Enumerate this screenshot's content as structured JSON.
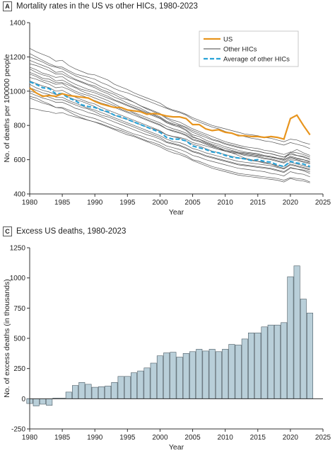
{
  "panel_a": {
    "letter": "A",
    "title": "Mortality rates in the US vs other HICs, 1980-2023"
  },
  "panel_c": {
    "letter": "C",
    "title": "Excess US deaths, 1980-2023"
  },
  "colors": {
    "us": "#E8951E",
    "other": "#444444",
    "average": "#2AA3D8",
    "bar_fill": "#B9CFD9",
    "bar_stroke": "#4A5A63"
  },
  "chart_data": [
    {
      "type": "line",
      "title": "Mortality rates in the US vs other HICs, 1980-2023",
      "xlabel": "Year",
      "ylabel": "No. of deaths per 100000 people",
      "xlim": [
        1980,
        2025
      ],
      "ylim": [
        400,
        1400
      ],
      "xticks": [
        1980,
        1985,
        1990,
        1995,
        2000,
        2005,
        2010,
        2015,
        2020,
        2025
      ],
      "yticks": [
        400,
        600,
        800,
        1000,
        1200,
        1400
      ],
      "legend": {
        "position": "top-right",
        "entries": [
          "US",
          "Other HICs",
          "Average of other HICs"
        ]
      },
      "x": [
        1980,
        1981,
        1982,
        1983,
        1984,
        1985,
        1986,
        1987,
        1988,
        1989,
        1990,
        1991,
        1992,
        1993,
        1994,
        1995,
        1996,
        1997,
        1998,
        1999,
        2000,
        2001,
        2002,
        2003,
        2004,
        2005,
        2006,
        2007,
        2008,
        2009,
        2010,
        2011,
        2012,
        2013,
        2014,
        2015,
        2016,
        2017,
        2018,
        2019,
        2020,
        2021,
        2022,
        2023
      ],
      "series": [
        {
          "name": "US",
          "values": [
            1020,
            990,
            970,
            975,
            970,
            985,
            975,
            970,
            965,
            960,
            940,
            925,
            915,
            905,
            905,
            890,
            885,
            880,
            865,
            870,
            865,
            855,
            850,
            850,
            840,
            805,
            805,
            780,
            770,
            775,
            760,
            755,
            740,
            740,
            735,
            735,
            730,
            735,
            730,
            720,
            840,
            860,
            800,
            745
          ]
        },
        {
          "name": "Average of other HICs",
          "values": [
            1055,
            1040,
            1020,
            1015,
            985,
            985,
            960,
            945,
            920,
            910,
            905,
            890,
            880,
            860,
            850,
            835,
            820,
            805,
            790,
            775,
            760,
            730,
            720,
            720,
            710,
            680,
            670,
            660,
            645,
            640,
            625,
            615,
            610,
            605,
            595,
            600,
            590,
            585,
            570,
            560,
            590,
            580,
            575,
            560
          ]
        }
      ],
      "other_hics": [
        [
          1220,
          1200,
          1180,
          1160,
          1145,
          1140,
          1120,
          1100,
          1090,
          1080,
          1070,
          1050,
          1035,
          1015,
          1000,
          990,
          975,
          960,
          945,
          930,
          915,
          900,
          885,
          875,
          860,
          835,
          820,
          805,
          790,
          780,
          765,
          755,
          745,
          735,
          725,
          720,
          710,
          705,
          695,
          685,
          700,
          690,
          680,
          665
        ],
        [
          1180,
          1165,
          1150,
          1135,
          1110,
          1115,
          1090,
          1070,
          1055,
          1040,
          1030,
          1010,
          995,
          980,
          960,
          950,
          935,
          915,
          900,
          885,
          870,
          845,
          830,
          820,
          800,
          780,
          765,
          750,
          735,
          720,
          705,
          695,
          685,
          675,
          670,
          665,
          655,
          650,
          640,
          630,
          645,
          640,
          630,
          615
        ],
        [
          1140,
          1125,
          1105,
          1095,
          1080,
          1085,
          1060,
          1040,
          1025,
          1010,
          1000,
          985,
          970,
          950,
          935,
          920,
          905,
          890,
          875,
          860,
          845,
          820,
          805,
          800,
          785,
          760,
          745,
          730,
          715,
          705,
          690,
          680,
          670,
          665,
          655,
          650,
          640,
          635,
          625,
          615,
          640,
          625,
          620,
          605
        ],
        [
          1100,
          1085,
          1065,
          1055,
          1040,
          1045,
          1020,
          1000,
          985,
          975,
          960,
          945,
          930,
          915,
          895,
          880,
          870,
          850,
          835,
          820,
          805,
          780,
          770,
          760,
          745,
          720,
          710,
          695,
          680,
          670,
          655,
          650,
          640,
          630,
          625,
          620,
          610,
          605,
          595,
          585,
          610,
          600,
          590,
          580
        ],
        [
          1060,
          1045,
          1030,
          1020,
          1000,
          1005,
          985,
          965,
          950,
          935,
          925,
          905,
          890,
          875,
          860,
          845,
          830,
          815,
          800,
          785,
          770,
          745,
          735,
          725,
          710,
          690,
          680,
          665,
          650,
          640,
          630,
          620,
          610,
          605,
          595,
          590,
          585,
          575,
          565,
          560,
          585,
          575,
          565,
          555
        ],
        [
          1020,
          1005,
          990,
          980,
          965,
          965,
          945,
          930,
          915,
          900,
          890,
          875,
          860,
          845,
          830,
          815,
          800,
          785,
          770,
          755,
          740,
          720,
          705,
          700,
          685,
          665,
          655,
          640,
          630,
          620,
          610,
          600,
          590,
          585,
          580,
          575,
          570,
          565,
          555,
          545,
          570,
          560,
          550,
          540
        ],
        [
          990,
          975,
          960,
          950,
          935,
          935,
          920,
          900,
          890,
          875,
          865,
          850,
          835,
          820,
          805,
          790,
          775,
          760,
          745,
          735,
          720,
          700,
          690,
          680,
          665,
          645,
          635,
          620,
          610,
          600,
          590,
          580,
          570,
          565,
          560,
          555,
          550,
          545,
          535,
          525,
          550,
          545,
          535,
          520
        ],
        [
          960,
          945,
          930,
          920,
          905,
          905,
          890,
          875,
          860,
          850,
          840,
          825,
          810,
          795,
          780,
          765,
          750,
          740,
          725,
          715,
          700,
          680,
          670,
          660,
          645,
          625,
          615,
          600,
          590,
          580,
          570,
          560,
          550,
          545,
          540,
          535,
          530,
          520,
          515,
          505,
          530,
          520,
          515,
          500
        ],
        [
          1250,
          1230,
          1215,
          1200,
          1175,
          1180,
          1150,
          1130,
          1115,
          1100,
          1095,
          1080,
          1065,
          1040,
          1025,
          1010,
          990,
          975,
          960,
          945,
          930,
          905,
          890,
          880,
          865,
          845,
          830,
          815,
          800,
          790,
          780,
          770,
          760,
          750,
          745,
          740,
          730,
          725,
          715,
          705,
          720,
          715,
          700,
          690
        ],
        [
          1130,
          1110,
          1095,
          1085,
          1060,
          1065,
          1045,
          1025,
          1010,
          1000,
          990,
          975,
          960,
          945,
          930,
          915,
          900,
          885,
          870,
          855,
          840,
          815,
          800,
          790,
          770,
          735,
          720,
          700,
          685,
          670,
          650,
          640,
          625,
          610,
          600,
          590,
          580,
          575,
          560,
          550,
          575,
          565,
          555,
          545
        ],
        [
          1200,
          1185,
          1170,
          1150,
          1140,
          1130,
          1110,
          1090,
          1075,
          1060,
          1045,
          1025,
          1010,
          990,
          975,
          955,
          935,
          915,
          895,
          880,
          865,
          840,
          820,
          805,
          790,
          770,
          755,
          740,
          720,
          710,
          695,
          685,
          675,
          665,
          655,
          650,
          640,
          635,
          625,
          615,
          630,
          625,
          615,
          600
        ],
        [
          1080,
          1070,
          1055,
          1040,
          1020,
          1025,
          1010,
          990,
          975,
          960,
          945,
          930,
          920,
          905,
          890,
          875,
          860,
          845,
          830,
          815,
          800,
          780,
          765,
          755,
          740,
          715,
          705,
          690,
          675,
          665,
          650,
          640,
          635,
          625,
          620,
          615,
          605,
          600,
          590,
          580,
          600,
          595,
          585,
          575
        ],
        [
          1160,
          1150,
          1135,
          1120,
          1100,
          1100,
          1080,
          1065,
          1050,
          1035,
          1020,
          1000,
          985,
          965,
          950,
          930,
          915,
          900,
          880,
          865,
          850,
          825,
          810,
          795,
          775,
          745,
          735,
          715,
          700,
          690,
          675,
          665,
          655,
          645,
          640,
          635,
          625,
          620,
          610,
          600,
          620,
          610,
          600,
          590
        ],
        [
          1000,
          990,
          975,
          965,
          950,
          950,
          935,
          920,
          905,
          895,
          880,
          860,
          850,
          835,
          820,
          805,
          790,
          775,
          760,
          745,
          730,
          705,
          695,
          685,
          670,
          650,
          640,
          625,
          615,
          605,
          595,
          585,
          575,
          570,
          565,
          560,
          555,
          550,
          540,
          530,
          555,
          545,
          540,
          530
        ],
        [
          900,
          895,
          885,
          880,
          870,
          875,
          860,
          850,
          840,
          830,
          820,
          810,
          795,
          780,
          770,
          755,
          740,
          725,
          710,
          700,
          685,
          665,
          655,
          640,
          625,
          600,
          590,
          575,
          560,
          550,
          540,
          530,
          520,
          515,
          510,
          505,
          500,
          495,
          490,
          480,
          495,
          490,
          485,
          470
        ],
        [
          970,
          960,
          940,
          925,
          905,
          900,
          880,
          860,
          845,
          830,
          820,
          805,
          790,
          775,
          760,
          745,
          735,
          720,
          705,
          690,
          675,
          655,
          640,
          630,
          615,
          595,
          580,
          565,
          550,
          540,
          530,
          520,
          510,
          505,
          500,
          495,
          490,
          485,
          480,
          470,
          490,
          480,
          475,
          465
        ],
        [
          1040,
          1020,
          1005,
          995,
          980,
          985,
          965,
          950,
          940,
          925,
          910,
          890,
          875,
          860,
          845,
          835,
          820,
          805,
          790,
          780,
          765,
          745,
          735,
          730,
          720,
          700,
          690,
          680,
          670,
          660,
          650,
          645,
          640,
          635,
          630,
          625,
          620,
          615,
          610,
          605,
          640,
          660,
          640,
          625
        ],
        [
          1110,
          1095,
          1075,
          1070,
          1050,
          1050,
          1035,
          1020,
          1000,
          985,
          975,
          960,
          945,
          925,
          905,
          890,
          875,
          860,
          845,
          830,
          815,
          795,
          780,
          770,
          755,
          730,
          720,
          705,
          690,
          680,
          665,
          655,
          645,
          640,
          635,
          630,
          620,
          615,
          605,
          595,
          615,
          605,
          600,
          585
        ]
      ]
    },
    {
      "type": "bar",
      "title": "Excess US deaths, 1980-2023",
      "xlabel": "Year",
      "ylabel": "No. of excess deaths (in thousands)",
      "xlim": [
        1980,
        2025
      ],
      "ylim": [
        -250,
        1250
      ],
      "xticks": [
        1980,
        1985,
        1990,
        1995,
        2000,
        2005,
        2010,
        2015,
        2020,
        2025
      ],
      "yticks": [
        -250,
        0,
        250,
        500,
        750,
        1000,
        1250
      ],
      "categories": [
        1980,
        1981,
        1982,
        1983,
        1984,
        1985,
        1986,
        1987,
        1988,
        1989,
        1990,
        1991,
        1992,
        1993,
        1994,
        1995,
        1996,
        1997,
        1998,
        1999,
        2000,
        2001,
        2002,
        2003,
        2004,
        2005,
        2006,
        2007,
        2008,
        2009,
        2010,
        2011,
        2012,
        2013,
        2014,
        2015,
        2016,
        2017,
        2018,
        2019,
        2020,
        2021,
        2022,
        2023
      ],
      "values": [
        -40,
        -60,
        -45,
        -55,
        5,
        5,
        55,
        110,
        135,
        120,
        95,
        100,
        105,
        135,
        185,
        185,
        215,
        230,
        255,
        295,
        355,
        380,
        385,
        345,
        375,
        390,
        410,
        395,
        410,
        390,
        410,
        450,
        445,
        495,
        545,
        545,
        595,
        610,
        610,
        630,
        1010,
        1100,
        825,
        710
      ]
    }
  ]
}
